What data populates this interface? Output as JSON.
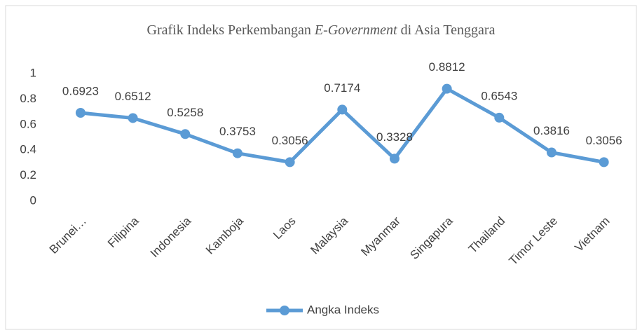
{
  "chart_data": {
    "type": "line",
    "title_parts": [
      "Grafik Indeks Perkembangan ",
      "E-Government",
      " di Asia Tenggara"
    ],
    "categories": [
      "Brunei…",
      "Filipina",
      "Indonesia",
      "Kamboja",
      "Laos",
      "Malaysia",
      "Myanmar",
      "Singapura",
      "Thailand",
      "Timor Leste",
      "Vietnam"
    ],
    "series": [
      {
        "name": "Angka Indeks",
        "color": "#5b9bd5",
        "values": [
          0.6923,
          0.6512,
          0.5258,
          0.3753,
          0.3056,
          0.7174,
          0.3328,
          0.8812,
          0.6543,
          0.3816,
          0.3056
        ]
      }
    ],
    "ylim": [
      0,
      1
    ],
    "yticks": [
      0,
      0.2,
      0.4,
      0.6,
      0.8,
      1
    ],
    "grid": false,
    "legend": "bottom"
  }
}
